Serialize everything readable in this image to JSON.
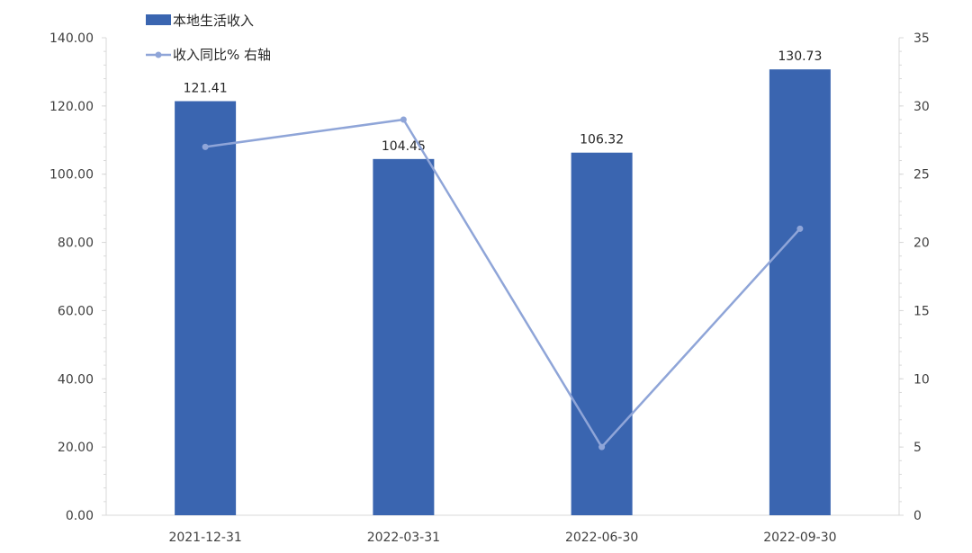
{
  "chart_data": {
    "type": "bar",
    "categories": [
      "2021-12-31",
      "2022-03-31",
      "2022-06-30",
      "2022-09-30"
    ],
    "series": [
      {
        "name": "本地生活收入",
        "type": "bar",
        "axis": "left",
        "values": [
          121.41,
          104.45,
          106.32,
          130.73
        ],
        "data_labels": [
          "121.41",
          "104.45",
          "106.32",
          "130.73"
        ]
      },
      {
        "name": "收入同比% 右轴",
        "type": "line",
        "axis": "right",
        "values": [
          27,
          29,
          5,
          21
        ]
      }
    ],
    "y_left": {
      "ylim": [
        0,
        140
      ],
      "ticks": [
        "0.00",
        "20.00",
        "40.00",
        "60.00",
        "80.00",
        "100.00",
        "120.00",
        "140.00"
      ]
    },
    "y_right": {
      "ylim": [
        0,
        35
      ],
      "ticks": [
        "0",
        "5",
        "10",
        "15",
        "20",
        "25",
        "30",
        "35"
      ]
    },
    "grid": false,
    "legend_position": "top-left",
    "colors": {
      "bar": "#3a65b0",
      "line": "#8fa5d8",
      "axis": "#d9d9d9",
      "text": "#404040"
    }
  }
}
